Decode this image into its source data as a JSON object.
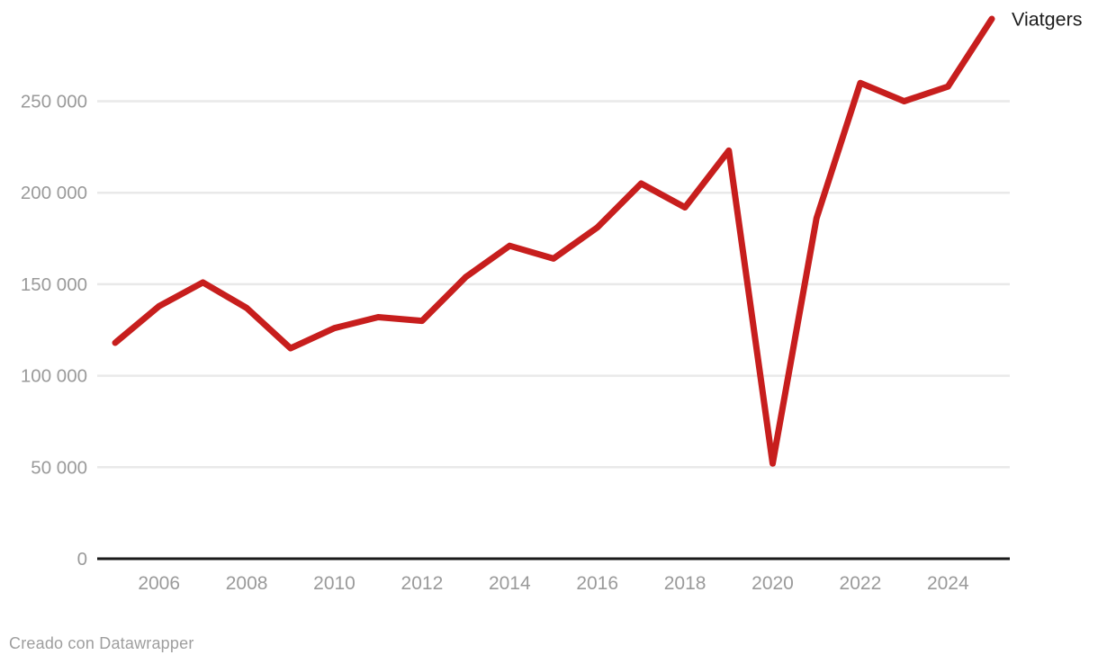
{
  "chart_data": {
    "type": "line",
    "title": "",
    "xlabel": "",
    "ylabel": "",
    "xlim": [
      2005,
      2025
    ],
    "ylim": [
      0,
      295000
    ],
    "grid": "horizontal-only",
    "legend_position": "label-at-line-end",
    "series_label": "Viatgers",
    "series": [
      {
        "name": "Viatgers",
        "color": "#c71e1d",
        "x": [
          2005,
          2006,
          2007,
          2008,
          2009,
          2010,
          2011,
          2012,
          2013,
          2014,
          2015,
          2016,
          2017,
          2018,
          2019,
          2020,
          2021,
          2022,
          2023,
          2024,
          2025
        ],
        "values": [
          118000,
          138000,
          151000,
          137000,
          115000,
          126000,
          132000,
          130000,
          154000,
          171000,
          164000,
          181000,
          205000,
          192000,
          223000,
          52000,
          186000,
          260000,
          250000,
          258000,
          295000
        ]
      }
    ],
    "y_ticks": [
      {
        "value": 0,
        "label": "0"
      },
      {
        "value": 50000,
        "label": "50 000"
      },
      {
        "value": 100000,
        "label": "100 000"
      },
      {
        "value": 150000,
        "label": "150 000"
      },
      {
        "value": 200000,
        "label": "200 000"
      },
      {
        "value": 250000,
        "label": "250 000"
      }
    ],
    "x_ticks": [
      {
        "value": 2006,
        "label": "2006"
      },
      {
        "value": 2008,
        "label": "2008"
      },
      {
        "value": 2010,
        "label": "2010"
      },
      {
        "value": 2012,
        "label": "2012"
      },
      {
        "value": 2014,
        "label": "2014"
      },
      {
        "value": 2016,
        "label": "2016"
      },
      {
        "value": 2018,
        "label": "2018"
      },
      {
        "value": 2020,
        "label": "2020"
      },
      {
        "value": 2022,
        "label": "2022"
      },
      {
        "value": 2024,
        "label": "2024"
      }
    ]
  },
  "footer": {
    "credit_text": "Creado con Datawrapper"
  },
  "colors": {
    "background": "#ffffff",
    "line": "#c71e1d",
    "grid": "#e9e9e9",
    "axis": "#1a1a1a",
    "tick_text": "#9a9a9a",
    "series_label_text": "#1d1d1d",
    "footer_text": "#9e9e9e"
  }
}
